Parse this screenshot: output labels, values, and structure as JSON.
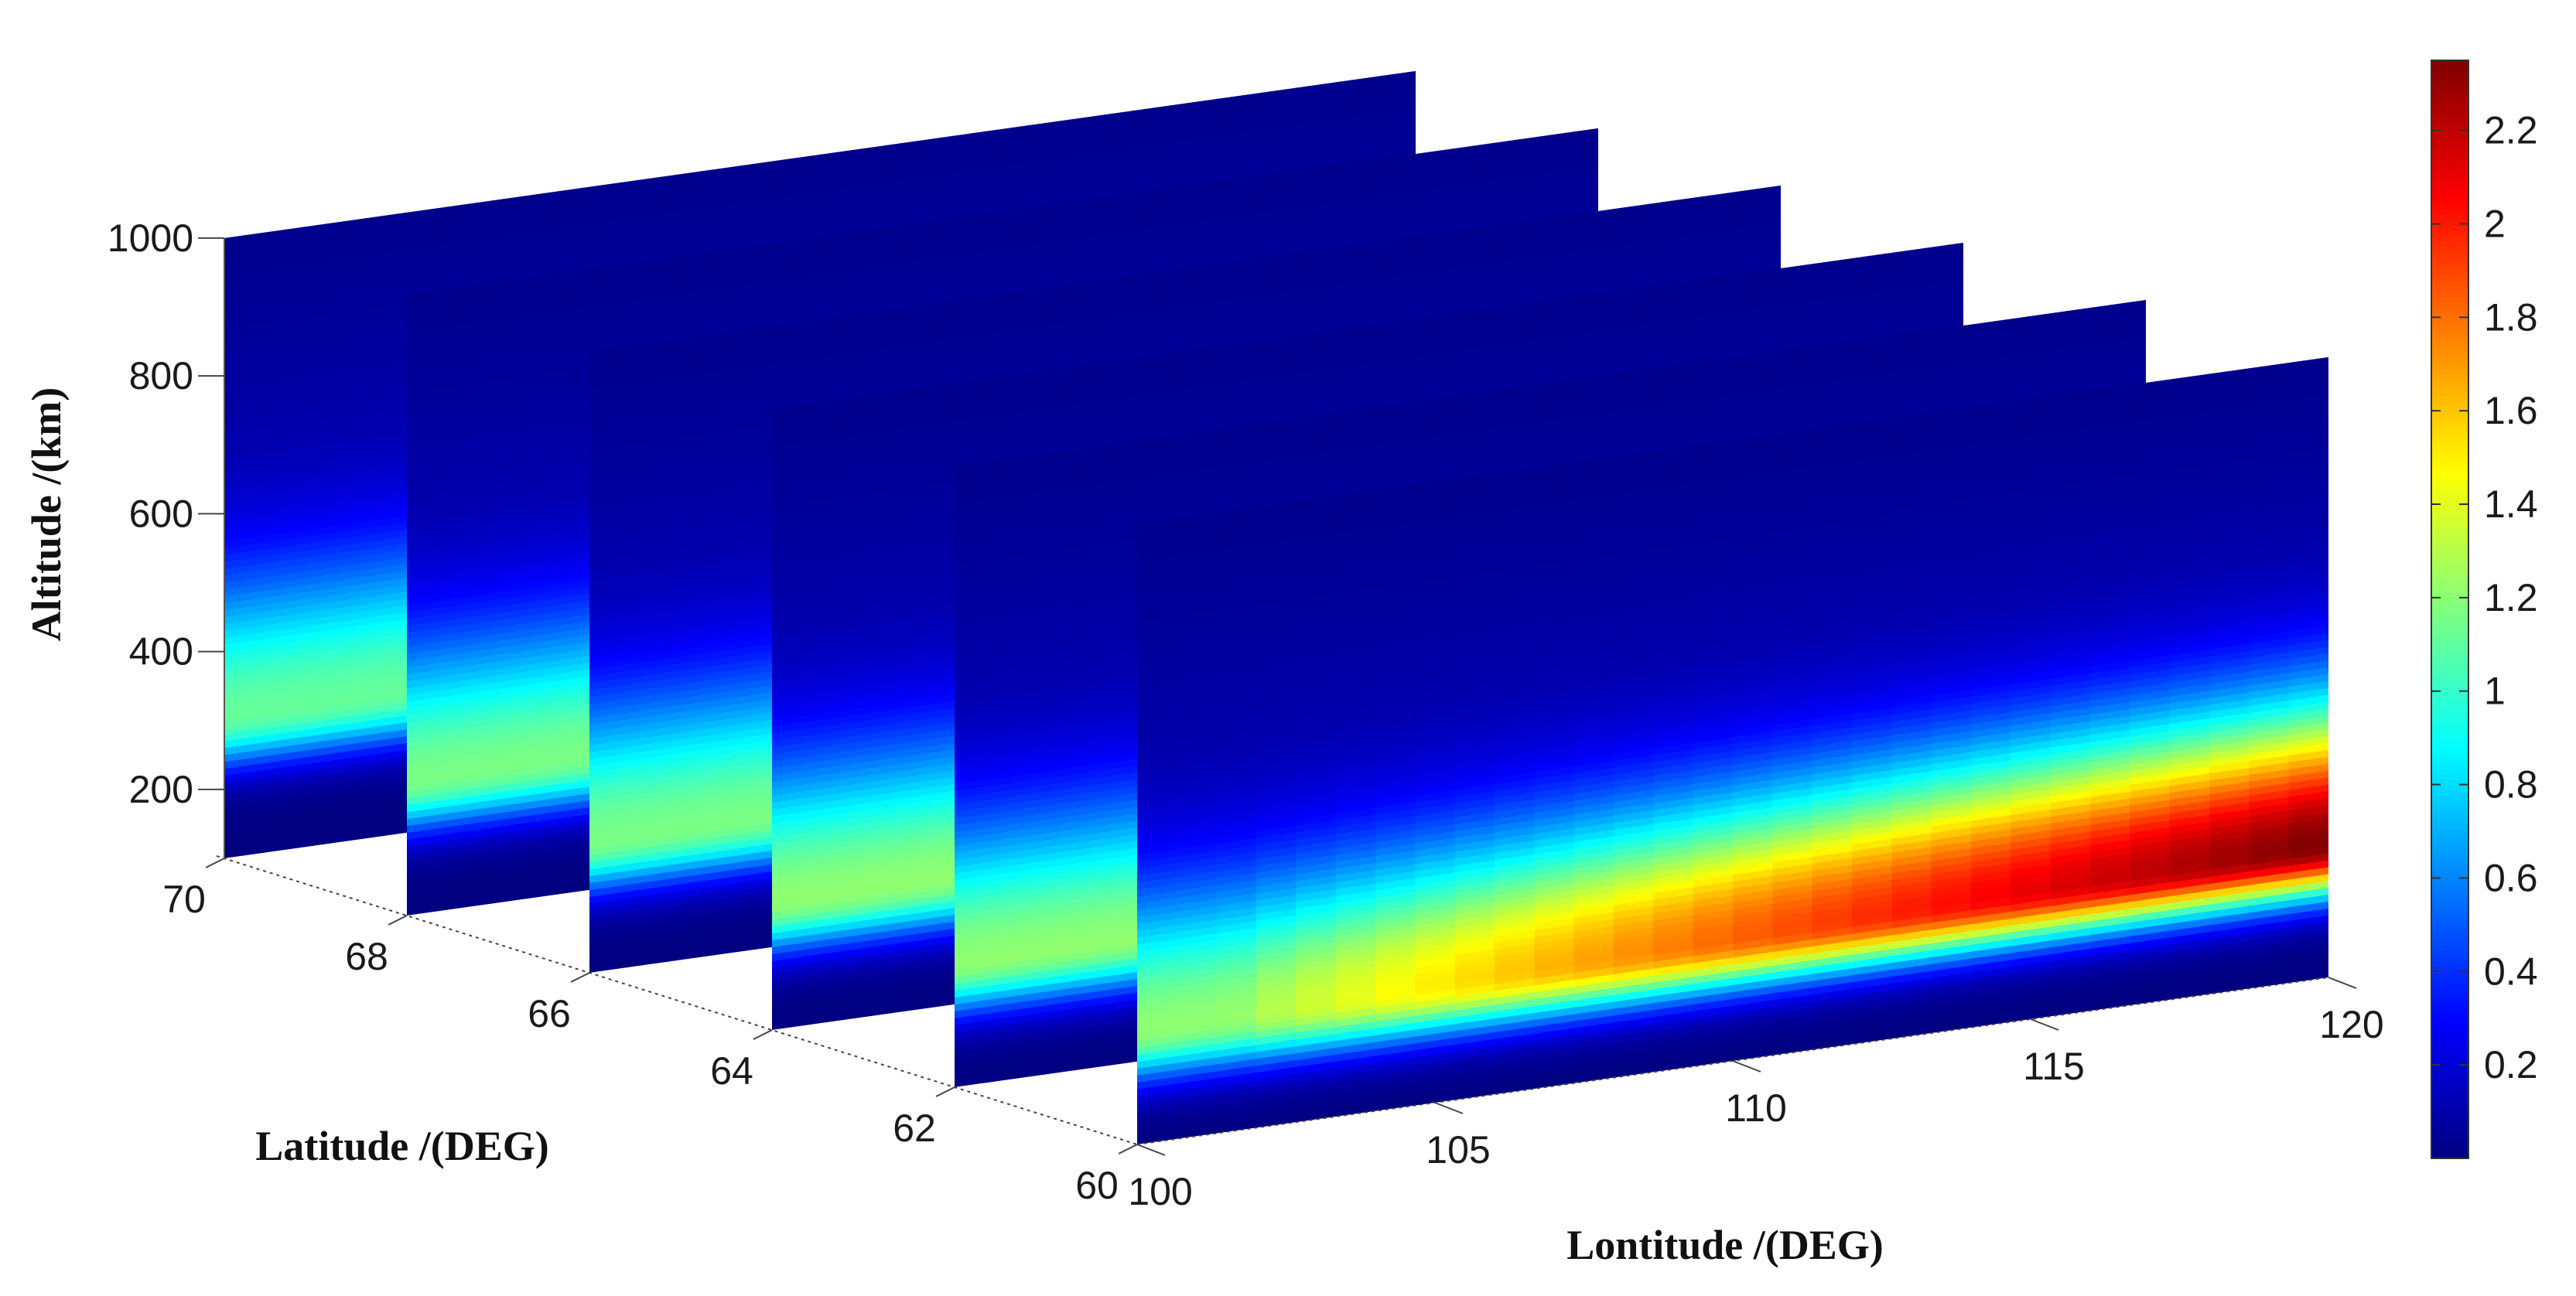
{
  "chart_data": {
    "type": "heatmap",
    "subtype": "3d-slice-planes",
    "xlabel": "Lontitude /(DEG)",
    "ylabel": "Latitude /(DEG)",
    "zlabel": "Altitude /(km)",
    "x_ticks": [
      100,
      105,
      110,
      115,
      120
    ],
    "y_ticks": [
      60,
      62,
      64,
      66,
      68,
      70
    ],
    "z_ticks": [
      200,
      400,
      600,
      800,
      1000
    ],
    "xlim": [
      100,
      120
    ],
    "ylim": [
      60,
      70
    ],
    "zlim": [
      100,
      1000
    ],
    "slice_latitudes": [
      70,
      68,
      66,
      64,
      62,
      60
    ],
    "colorbar": {
      "colormap": "jet",
      "range": [
        0,
        2.35
      ],
      "ticks": [
        "0.2",
        "0.4",
        "0.6",
        "0.8",
        "1",
        "1.2",
        "1.4",
        "1.6",
        "1.8",
        "2",
        "2.2"
      ]
    },
    "slices": [
      {
        "latitude": 70,
        "peak_altitude_km": 300,
        "peak_value": 1.1,
        "east_peak_value": 1.1,
        "east_peak_altitude_km": 300
      },
      {
        "latitude": 68,
        "peak_altitude_km": 290,
        "peak_value": 1.15,
        "east_peak_value": 1.15,
        "east_peak_altitude_km": 290
      },
      {
        "latitude": 66,
        "peak_altitude_km": 285,
        "peak_value": 1.15,
        "east_peak_value": 1.15,
        "east_peak_altitude_km": 285
      },
      {
        "latitude": 64,
        "peak_altitude_km": 280,
        "peak_value": 1.2,
        "east_peak_value": 1.2,
        "east_peak_altitude_km": 280
      },
      {
        "latitude": 62,
        "peak_altitude_km": 275,
        "peak_value": 1.2,
        "east_peak_value": 1.2,
        "east_peak_altitude_km": 275
      },
      {
        "latitude": 60,
        "peak_altitude_km": 260,
        "peak_value": 1.2,
        "east_peak_value": 2.35,
        "east_peak_altitude_km": 290
      }
    ]
  }
}
